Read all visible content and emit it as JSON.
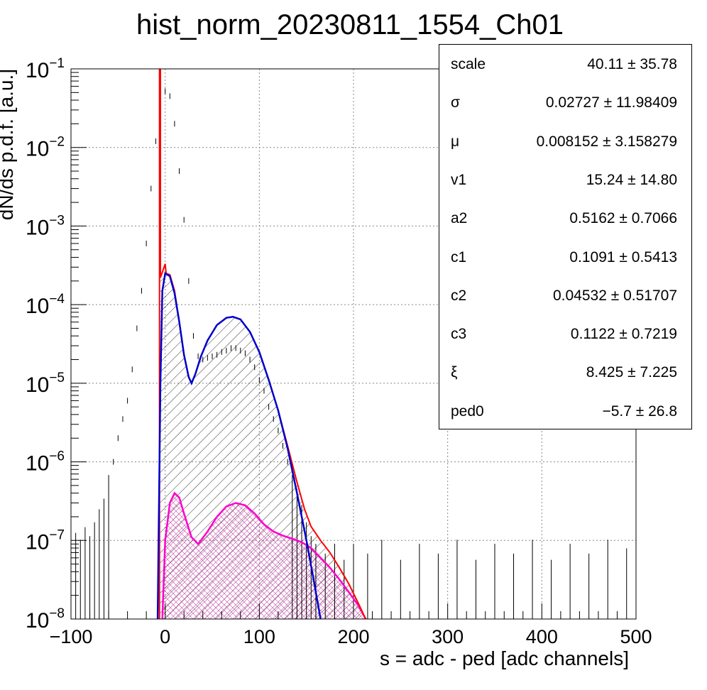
{
  "chart_data": {
    "type": "histogram",
    "title": "hist_norm_20230811_1554_Ch01",
    "xlabel": "s = adc - ped [adc channels]",
    "ylabel": "dN/ds p.d.f. [a.u.]",
    "xlim": [
      -100,
      500
    ],
    "ylim": [
      1e-08,
      0.1
    ],
    "y_scale": "log",
    "grid": true,
    "x_ticks": [
      -100,
      0,
      100,
      200,
      300,
      400,
      500
    ],
    "x_tick_labels": [
      "−100",
      "0",
      "100",
      "200",
      "300",
      "400",
      "500"
    ],
    "y_ticks": [
      {
        "base": "10",
        "exp": "−1",
        "value": 0.1
      },
      {
        "base": "10",
        "exp": "−2",
        "value": 0.01
      },
      {
        "base": "10",
        "exp": "−3",
        "value": 0.001
      },
      {
        "base": "10",
        "exp": "−4",
        "value": 0.0001
      },
      {
        "base": "10",
        "exp": "−5",
        "value": 1e-05
      },
      {
        "base": "10",
        "exp": "−6",
        "value": 1e-06
      },
      {
        "base": "10",
        "exp": "−7",
        "value": 1e-07
      },
      {
        "base": "10",
        "exp": "−8",
        "value": 1e-08
      }
    ],
    "colors": {
      "data": "#000000",
      "total_fit": "#ff0000",
      "signal_fit": "#0000cc",
      "background_fit": "#ff00cc"
    },
    "data_points": [
      {
        "x": -100,
        "y": 1.2e-07
      },
      {
        "x": -95,
        "y": 1.1e-07
      },
      {
        "x": -90,
        "y": 9e-08
      },
      {
        "x": -85,
        "y": 1.3e-07
      },
      {
        "x": -80,
        "y": 1e-07
      },
      {
        "x": -75,
        "y": 1.5e-07
      },
      {
        "x": -70,
        "y": 2.2e-07
      },
      {
        "x": -65,
        "y": 3e-07
      },
      {
        "x": -60,
        "y": 6e-07
      },
      {
        "x": -55,
        "y": 1e-06
      },
      {
        "x": -50,
        "y": 2e-06
      },
      {
        "x": -45,
        "y": 3.5e-06
      },
      {
        "x": -40,
        "y": 6e-06
      },
      {
        "x": -35,
        "y": 1.5e-05
      },
      {
        "x": -30,
        "y": 5e-05
      },
      {
        "x": -25,
        "y": 0.00015
      },
      {
        "x": -20,
        "y": 0.0006
      },
      {
        "x": -15,
        "y": 0.003
      },
      {
        "x": -10,
        "y": 0.012
      },
      {
        "x": -5,
        "y": 0.035
      },
      {
        "x": 0,
        "y": 0.052
      },
      {
        "x": 5,
        "y": 0.045
      },
      {
        "x": 10,
        "y": 0.02
      },
      {
        "x": 15,
        "y": 0.005
      },
      {
        "x": 20,
        "y": 0.0012
      },
      {
        "x": 25,
        "y": 0.0002
      },
      {
        "x": 30,
        "y": 4e-05
      },
      {
        "x": 35,
        "y": 2.2e-05
      },
      {
        "x": 40,
        "y": 2e-05
      },
      {
        "x": 45,
        "y": 2.1e-05
      },
      {
        "x": 50,
        "y": 2.2e-05
      },
      {
        "x": 55,
        "y": 2.3e-05
      },
      {
        "x": 60,
        "y": 2.5e-05
      },
      {
        "x": 65,
        "y": 2.6e-05
      },
      {
        "x": 70,
        "y": 2.8e-05
      },
      {
        "x": 75,
        "y": 2.8e-05
      },
      {
        "x": 80,
        "y": 2.6e-05
      },
      {
        "x": 85,
        "y": 2.4e-05
      },
      {
        "x": 90,
        "y": 2e-05
      },
      {
        "x": 95,
        "y": 1.6e-05
      },
      {
        "x": 100,
        "y": 1.1e-05
      },
      {
        "x": 105,
        "y": 8e-06
      },
      {
        "x": 110,
        "y": 5e-06
      },
      {
        "x": 115,
        "y": 3.5e-06
      },
      {
        "x": 120,
        "y": 2.5e-06
      },
      {
        "x": 125,
        "y": 1.6e-06
      },
      {
        "x": 130,
        "y": 1e-06
      },
      {
        "x": 135,
        "y": 6e-07
      },
      {
        "x": 140,
        "y": 4e-07
      },
      {
        "x": 145,
        "y": 2.5e-07
      },
      {
        "x": 150,
        "y": 1.5e-07
      },
      {
        "x": 155,
        "y": 1e-07
      },
      {
        "x": 160,
        "y": 8e-08
      },
      {
        "x": 170,
        "y": 6e-08
      },
      {
        "x": 180,
        "y": 8e-08
      },
      {
        "x": 190,
        "y": 5e-08
      },
      {
        "x": 200,
        "y": 8e-08
      },
      {
        "x": 215,
        "y": 6e-08
      },
      {
        "x": 230,
        "y": 9e-08
      },
      {
        "x": 250,
        "y": 5e-08
      },
      {
        "x": 270,
        "y": 8e-08
      },
      {
        "x": 290,
        "y": 6e-08
      },
      {
        "x": 310,
        "y": 9e-08
      },
      {
        "x": 330,
        "y": 5e-08
      },
      {
        "x": 350,
        "y": 8e-08
      },
      {
        "x": 370,
        "y": 6e-08
      },
      {
        "x": 390,
        "y": 9e-08
      },
      {
        "x": 410,
        "y": 5e-08
      },
      {
        "x": 430,
        "y": 8e-08
      },
      {
        "x": 450,
        "y": 6e-08
      },
      {
        "x": 470,
        "y": 9e-08
      },
      {
        "x": 490,
        "y": 7e-08
      }
    ],
    "total_fit": [
      {
        "x": -6,
        "y": 1e-08
      },
      {
        "x": -6,
        "y": 0.1
      },
      {
        "x": -5,
        "y": 0.1
      },
      {
        "x": -5,
        "y": 0.00022
      },
      {
        "x": 0,
        "y": 0.00033
      },
      {
        "x": 1,
        "y": 0.00025
      },
      {
        "x": 5,
        "y": 0.00024
      },
      {
        "x": 10,
        "y": 0.00015
      },
      {
        "x": 15,
        "y": 6e-05
      },
      {
        "x": 20,
        "y": 2.3e-05
      },
      {
        "x": 25,
        "y": 1.2e-05
      },
      {
        "x": 28,
        "y": 1e-05
      },
      {
        "x": 32,
        "y": 1.3e-05
      },
      {
        "x": 38,
        "y": 2.2e-05
      },
      {
        "x": 45,
        "y": 3.5e-05
      },
      {
        "x": 55,
        "y": 5.5e-05
      },
      {
        "x": 65,
        "y": 6.8e-05
      },
      {
        "x": 72,
        "y": 7e-05
      },
      {
        "x": 80,
        "y": 6.5e-05
      },
      {
        "x": 90,
        "y": 4.5e-05
      },
      {
        "x": 100,
        "y": 2.5e-05
      },
      {
        "x": 110,
        "y": 1.1e-05
      },
      {
        "x": 120,
        "y": 4.5e-06
      },
      {
        "x": 130,
        "y": 1.6e-06
      },
      {
        "x": 140,
        "y": 5.5e-07
      },
      {
        "x": 148,
        "y": 2.5e-07
      },
      {
        "x": 155,
        "y": 1.5e-07
      },
      {
        "x": 165,
        "y": 1e-07
      },
      {
        "x": 175,
        "y": 7e-08
      },
      {
        "x": 185,
        "y": 4.5e-08
      },
      {
        "x": 195,
        "y": 2.8e-08
      },
      {
        "x": 205,
        "y": 1.6e-08
      },
      {
        "x": 213,
        "y": 1e-08
      }
    ],
    "signal_fit": [
      {
        "x": -8,
        "y": 1e-08
      },
      {
        "x": -5,
        "y": 1e-05
      },
      {
        "x": -3,
        "y": 0.00015
      },
      {
        "x": 0,
        "y": 0.00025
      },
      {
        "x": 5,
        "y": 0.00023
      },
      {
        "x": 10,
        "y": 0.00014
      },
      {
        "x": 15,
        "y": 6e-05
      },
      {
        "x": 20,
        "y": 2.3e-05
      },
      {
        "x": 25,
        "y": 1.2e-05
      },
      {
        "x": 28,
        "y": 1e-05
      },
      {
        "x": 32,
        "y": 1.3e-05
      },
      {
        "x": 38,
        "y": 2.2e-05
      },
      {
        "x": 45,
        "y": 3.5e-05
      },
      {
        "x": 55,
        "y": 5.5e-05
      },
      {
        "x": 65,
        "y": 6.8e-05
      },
      {
        "x": 72,
        "y": 7e-05
      },
      {
        "x": 80,
        "y": 6.5e-05
      },
      {
        "x": 90,
        "y": 4.5e-05
      },
      {
        "x": 100,
        "y": 2.5e-05
      },
      {
        "x": 110,
        "y": 1.1e-05
      },
      {
        "x": 120,
        "y": 4.5e-06
      },
      {
        "x": 130,
        "y": 1.5e-06
      },
      {
        "x": 140,
        "y": 4e-07
      },
      {
        "x": 150,
        "y": 1e-07
      },
      {
        "x": 158,
        "y": 3e-08
      },
      {
        "x": 165,
        "y": 1e-08
      }
    ],
    "background_fit": [
      {
        "x": -3,
        "y": 1e-08
      },
      {
        "x": 0,
        "y": 1e-07
      },
      {
        "x": 5,
        "y": 3e-07
      },
      {
        "x": 10,
        "y": 4e-07
      },
      {
        "x": 15,
        "y": 3.5e-07
      },
      {
        "x": 20,
        "y": 2.2e-07
      },
      {
        "x": 28,
        "y": 1.1e-07
      },
      {
        "x": 35,
        "y": 9e-08
      },
      {
        "x": 45,
        "y": 1.3e-07
      },
      {
        "x": 55,
        "y": 2e-07
      },
      {
        "x": 65,
        "y": 2.7e-07
      },
      {
        "x": 75,
        "y": 3e-07
      },
      {
        "x": 85,
        "y": 2.8e-07
      },
      {
        "x": 95,
        "y": 2.2e-07
      },
      {
        "x": 105,
        "y": 1.6e-07
      },
      {
        "x": 115,
        "y": 1.3e-07
      },
      {
        "x": 125,
        "y": 1.15e-07
      },
      {
        "x": 135,
        "y": 1.05e-07
      },
      {
        "x": 145,
        "y": 9.5e-08
      },
      {
        "x": 155,
        "y": 8e-08
      },
      {
        "x": 165,
        "y": 6e-08
      },
      {
        "x": 175,
        "y": 4.5e-08
      },
      {
        "x": 185,
        "y": 3.2e-08
      },
      {
        "x": 195,
        "y": 2.2e-08
      },
      {
        "x": 205,
        "y": 1.5e-08
      },
      {
        "x": 213,
        "y": 1e-08
      }
    ]
  },
  "stats": [
    {
      "name": "scale",
      "value": "40.11 ± 35.78"
    },
    {
      "name": "σ",
      "value": "0.02727  ± 11.98409"
    },
    {
      "name": "μ",
      "value": "0.008152  ± 3.158279"
    },
    {
      "name": "v1",
      "value": "15.24  ± 14.80"
    },
    {
      "name": "a2",
      "value": "0.5162  ± 0.7066"
    },
    {
      "name": "c1",
      "value": "0.1091  ± 0.5413"
    },
    {
      "name": "c2",
      "value": "0.04532  ± 0.51707"
    },
    {
      "name": "c3",
      "value": "0.1122  ± 0.7219"
    },
    {
      "name": "ξ",
      "value": "8.425  ± 7.225"
    },
    {
      "name": "ped0",
      "value": "−5.7 ± 26.8"
    }
  ]
}
